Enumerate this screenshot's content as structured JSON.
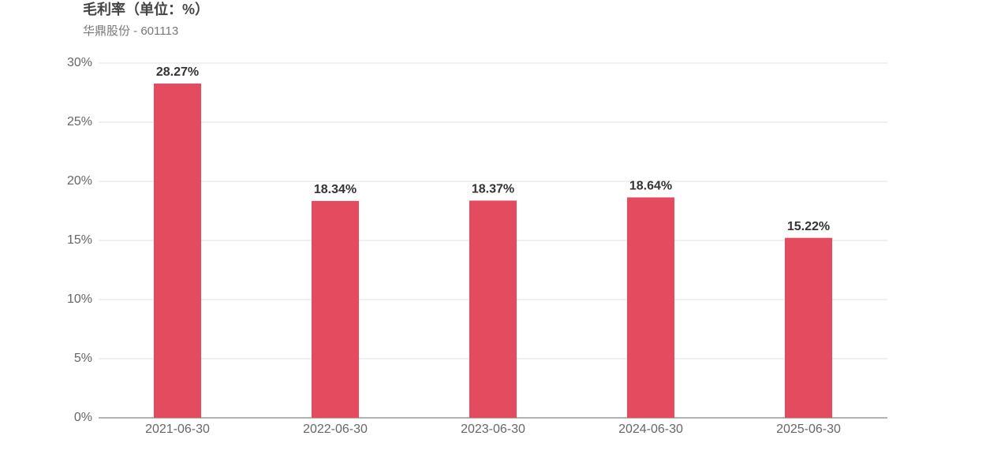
{
  "chart_data": {
    "type": "bar",
    "title": "毛利率（单位：%）",
    "subtitle": "华鼎股份 - 601113",
    "categories": [
      "2021-06-30",
      "2022-06-30",
      "2023-06-30",
      "2024-06-30",
      "2025-06-30"
    ],
    "values": [
      28.27,
      18.34,
      18.37,
      18.64,
      15.22
    ],
    "value_labels": [
      "28.27%",
      "18.34%",
      "18.37%",
      "18.64%",
      "15.22%"
    ],
    "color": "#e54b5e",
    "ylim": [
      0,
      30
    ],
    "yticks": [
      {
        "value": 0,
        "label": "0%"
      },
      {
        "value": 5,
        "label": "5%"
      },
      {
        "value": 10,
        "label": "10%"
      },
      {
        "value": 15,
        "label": "15%"
      },
      {
        "value": 20,
        "label": "20%"
      },
      {
        "value": 25,
        "label": "25%"
      },
      {
        "value": 30,
        "label": "30%"
      }
    ],
    "grid": true
  }
}
